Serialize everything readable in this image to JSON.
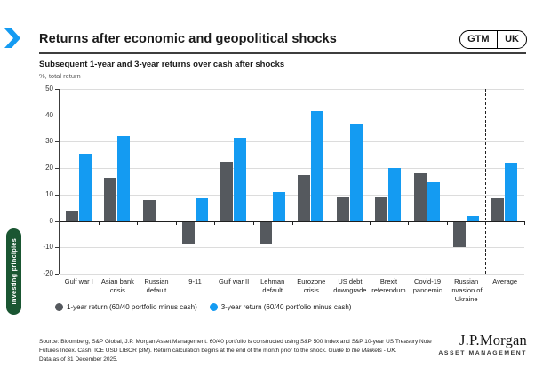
{
  "header": {
    "title": "Returns after economic and geopolitical shocks",
    "badge_left": "GTM",
    "badge_right": "UK"
  },
  "sidebar_tab": {
    "label": "Investing principles",
    "color": "#1a5632"
  },
  "chart_data": {
    "type": "bar",
    "title": "Subsequent 1-year and 3-year returns over cash after shocks",
    "subtitle_note": "%, total return",
    "categories": [
      "Gulf war I",
      "Asian bank crisis",
      "Russian default",
      "9-11",
      "Gulf war II",
      "Lehman default",
      "Eurozone crisis",
      "US debt downgrade",
      "Brexit referendum",
      "Covid-19 pandemic",
      "Russian invasion of Ukraine",
      "Average"
    ],
    "series": [
      {
        "name": "1-year return (60/40 portfolio minus cash)",
        "color": "#55595e",
        "values": [
          4,
          16.5,
          8,
          -8.5,
          22.5,
          -9,
          17.5,
          9,
          9,
          18,
          -10,
          8.5
        ]
      },
      {
        "name": "3-year return (60/40 portfolio minus cash)",
        "color": "#149bf2",
        "values": [
          25.5,
          32,
          0,
          8.5,
          31.5,
          11,
          41.5,
          36.5,
          20,
          14.5,
          2,
          22
        ]
      }
    ],
    "ylim": [
      -20,
      50
    ],
    "ytick_step": 10,
    "grid": true,
    "legend_position": "bottom",
    "separator_before_category": "Average"
  },
  "footer": {
    "source_line1": "Source: Bloomberg, S&P Global, J.P. Morgan Asset Management. 60/40 portfolio is constructed using S&P 500 Index and S&P 10-year US Treasury Note",
    "source_line2": "Futures Index. Cash: ICE USD LIBOR (3M). Return calculation begins at the end of the month prior to the shock. ",
    "source_line2_italic": "Guide to the Markets - UK.",
    "source_line3": "Data as of 31 December 2025.",
    "logo_main": "J.P.Morgan",
    "logo_sub": "ASSET MANAGEMENT"
  }
}
